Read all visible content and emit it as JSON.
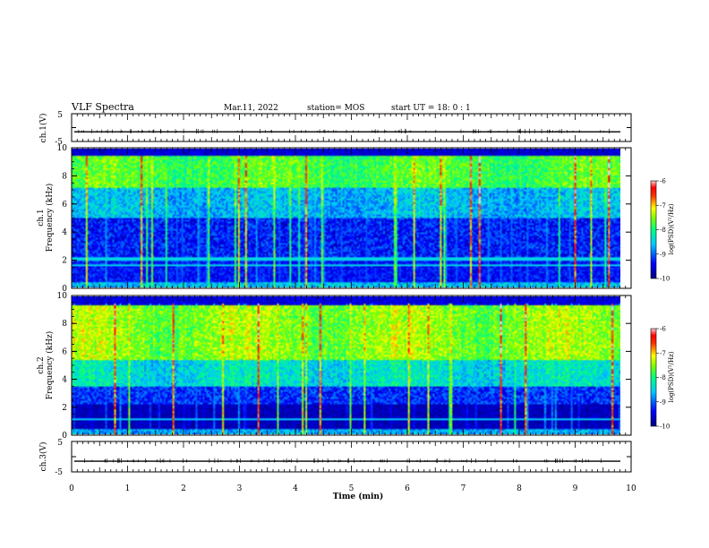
{
  "header": {
    "title": "VLF Spectra",
    "date": "Mar.11, 2022",
    "station": "station= MOS",
    "start": "start  UT =   18: 0  : 1"
  },
  "chart_data": [
    {
      "type": "line",
      "name": "ch1-waveform",
      "ylabel": "ch.1(V)",
      "ylim": [
        -5,
        5
      ],
      "yticks": [
        "5",
        "-5"
      ],
      "xlim": [
        0,
        10
      ],
      "baseline": -1.5
    },
    {
      "type": "heatmap",
      "name": "ch1-spectrogram",
      "ylabel_lines": [
        "ch.1",
        "Frequency (kHz)"
      ],
      "ylim": [
        0,
        10
      ],
      "yticks": [
        "0",
        "2",
        "4",
        "6",
        "8",
        "10"
      ],
      "xlim": [
        0,
        10
      ],
      "colorbar": {
        "label": "log(PSD)(V²/Hz)",
        "ticks": [
          "-6",
          "-7",
          "-8",
          "-9",
          "-10"
        ],
        "range": [
          -10,
          -6
        ]
      }
    },
    {
      "type": "heatmap",
      "name": "ch2-spectrogram",
      "ylabel_lines": [
        "ch.2",
        "Frequency (kHz)"
      ],
      "ylim": [
        0,
        10
      ],
      "yticks": [
        "0",
        "2",
        "4",
        "6",
        "8",
        "10"
      ],
      "xlim": [
        0,
        10
      ],
      "colorbar": {
        "label": "log(PSD)(V²/Hz)",
        "ticks": [
          "-6",
          "-7",
          "-8",
          "-9",
          "-10"
        ],
        "range": [
          -10,
          -6
        ]
      }
    },
    {
      "type": "line",
      "name": "ch3-waveform",
      "ylabel": "ch.3(V)",
      "ylim": [
        -5,
        5
      ],
      "yticks": [
        "5",
        "-5"
      ],
      "xlim": [
        0,
        10
      ],
      "baseline": -1.5
    }
  ],
  "xaxis": {
    "label": "Time (min)",
    "ticks": [
      "0",
      "1",
      "2",
      "3",
      "4",
      "5",
      "6",
      "7",
      "8",
      "9",
      "10"
    ]
  },
  "colors": {
    "cmap": [
      "#00007f",
      "#0000ff",
      "#0080ff",
      "#00ffff",
      "#80ff80",
      "#ffff00",
      "#ff8000",
      "#ff0000",
      "#ffc0c0"
    ]
  }
}
